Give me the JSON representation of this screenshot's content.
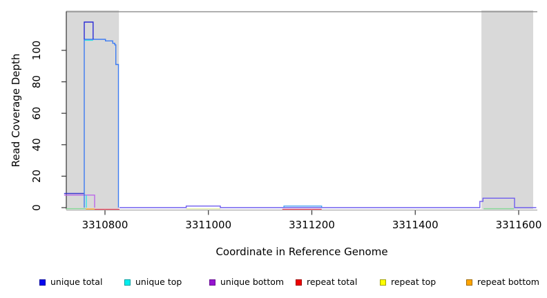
{
  "axes": {
    "x_label": "Coordinate in Reference Genome",
    "y_label": "Read Coverage Depth"
  },
  "chart_data": {
    "type": "line",
    "title": "",
    "xlabel": "Coordinate in Reference Genome",
    "ylabel": "Read Coverage Depth",
    "xlim": [
      3310721,
      3311634
    ],
    "ylim": [
      0,
      124
    ],
    "grid": false,
    "legend_position": "bottom",
    "x_ticks": [
      3310800,
      3311000,
      3311200,
      3311400,
      3311600
    ],
    "x_tick_labels": [
      "3310800",
      "3311000",
      "3311200",
      "3311400",
      "3311600"
    ],
    "y_ticks": [
      0,
      20,
      40,
      60,
      80,
      100
    ],
    "y_tick_labels": [
      "0",
      "20",
      "40",
      "60",
      "80",
      "100"
    ],
    "shaded_regions": [
      {
        "from": 3310721,
        "to": 3310827,
        "color": "#d9d9d9"
      },
      {
        "from": 3311528,
        "to": 3311628,
        "color": "#d9d9d9"
      }
    ],
    "colors": {
      "shade": "#d9d9d9",
      "frame": "#808080",
      "axis": "#333333",
      "baseline_axis": "#999999"
    },
    "legend": [
      {
        "label": "unique total",
        "fill": "#0606f0",
        "border": "#0000a0"
      },
      {
        "label": "unique top",
        "fill": "#00eeee",
        "border": "#00a0a0"
      },
      {
        "label": "unique bottom",
        "fill": "#9614d0",
        "border": "#6a0e94"
      },
      {
        "label": "repeat total",
        "fill": "#ee0000",
        "border": "#a00000"
      },
      {
        "label": "repeat top",
        "fill": "#ffff00",
        "border": "#a0a000"
      },
      {
        "label": "repeat bottom",
        "fill": "#ffa500",
        "border": "#a06a00"
      }
    ],
    "series_draw": [
      {
        "name": "zero-line-green-left",
        "color": "#7fd491",
        "dy": 1.6,
        "points": [
          [
            3310725,
            0
          ],
          [
            3310763,
            0
          ]
        ]
      },
      {
        "name": "zero-line-green-right",
        "color": "#7fd491",
        "dy": 1.6,
        "points": [
          [
            3311532,
            0
          ],
          [
            3311591,
            0
          ]
        ]
      },
      {
        "name": "repeat-top-under-bump1",
        "color": "#e4efa3",
        "dy": 1.6,
        "points": [
          [
            3310957,
            0
          ],
          [
            3311023,
            0
          ]
        ]
      },
      {
        "name": "repeat-bottom-left",
        "color": "#ffa420",
        "dy": 2.0,
        "points": [
          [
            3310763,
            0
          ],
          [
            3310780,
            0
          ]
        ]
      },
      {
        "name": "repeat-total-left",
        "color": "#f2556a",
        "dy": 2.4,
        "points": [
          [
            3310780,
            0
          ],
          [
            3310828,
            0
          ]
        ]
      },
      {
        "name": "repeat-total-bump2",
        "color": "#f2556a",
        "dy": 2.4,
        "points": [
          [
            3311143,
            0
          ],
          [
            3311219,
            0
          ]
        ]
      },
      {
        "name": "unique-bottom-left",
        "color": "#bb66e9",
        "dy": 0,
        "points": [
          [
            3310721,
            8
          ],
          [
            3310780,
            8
          ],
          [
            3310780,
            0
          ]
        ]
      },
      {
        "name": "unique-total-left",
        "color": "#3a35cf",
        "dy": 0,
        "points": [
          [
            3310721,
            9
          ],
          [
            3310760,
            9
          ]
        ]
      },
      {
        "name": "unique-top-drop",
        "color": "#35e5e5",
        "dy": 0,
        "points": [
          [
            3310764,
            8
          ],
          [
            3310764,
            0
          ]
        ]
      },
      {
        "name": "unique-top-spike",
        "color": "#35e5e5",
        "dy": 1.4,
        "points": [
          [
            3310760,
            107
          ],
          [
            3310777,
            107
          ]
        ]
      },
      {
        "name": "unique-total-main",
        "color": "#3c7bf2",
        "dy": 0,
        "points": [
          [
            3310760,
            0
          ],
          [
            3310760,
            107
          ],
          [
            3310801,
            107
          ],
          [
            3310801,
            106
          ],
          [
            3310815,
            106
          ],
          [
            3310815,
            104.5
          ],
          [
            3310819,
            104.5
          ],
          [
            3310819,
            103.5
          ],
          [
            3310821,
            103.5
          ],
          [
            3310821,
            91
          ],
          [
            3310826,
            91
          ],
          [
            3310826,
            0
          ]
        ]
      },
      {
        "name": "unique-total-spike",
        "color": "#2b2bd5",
        "dy": 0,
        "points": [
          [
            3310760,
            107
          ],
          [
            3310760,
            118
          ],
          [
            3310777,
            118
          ],
          [
            3310777,
            107
          ]
        ]
      },
      {
        "name": "unique-bottom-baseline",
        "color": "#6f5dee",
        "dy": 0,
        "points": [
          [
            3310828,
            0
          ],
          [
            3310957,
            0
          ],
          [
            3310957,
            1
          ],
          [
            3311023,
            1
          ],
          [
            3311023,
            0
          ],
          [
            3311525,
            0
          ],
          [
            3311525,
            4
          ],
          [
            3311531,
            4
          ],
          [
            3311531,
            6
          ],
          [
            3311592,
            6
          ],
          [
            3311592,
            0
          ],
          [
            3311634,
            0
          ]
        ]
      },
      {
        "name": "unique-total-bump2",
        "color": "#47a0f2",
        "dy": 0,
        "points": [
          [
            3311146,
            0
          ],
          [
            3311146,
            1
          ],
          [
            3311219,
            1
          ],
          [
            3311219,
            0
          ]
        ]
      }
    ]
  }
}
